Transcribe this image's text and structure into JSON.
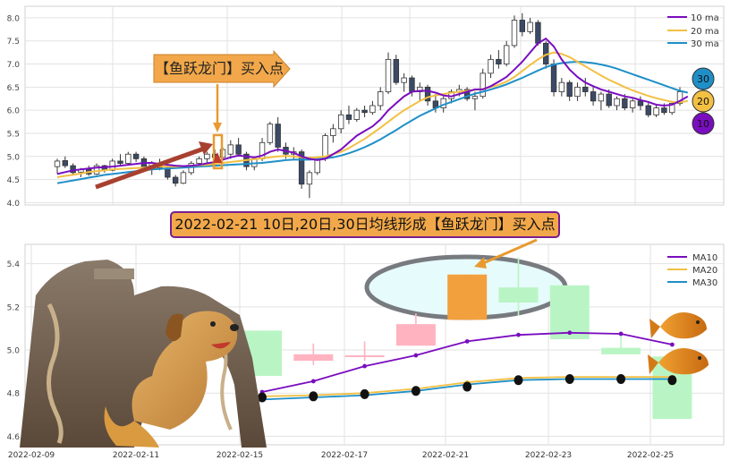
{
  "chart_data": [
    {
      "type": "candlestick",
      "title": "",
      "xlabel": "",
      "ylabel": "",
      "ylim": [
        3.95,
        8.25
      ],
      "yticks": [
        "4.0",
        "4.5",
        "5.0",
        "5.5",
        "6.0",
        "6.5",
        "7.0",
        "7.5",
        "8.0"
      ],
      "grid": true,
      "legend_position": "top-right",
      "legend": [
        "10 ma",
        "20 ma",
        "30 ma"
      ],
      "series_colors": {
        "10 ma": "#7a0dbf",
        "20 ma": "#f2c043",
        "30 ma": "#1f8fc8"
      },
      "candle_colors": {
        "up": "#ffffff",
        "down": "#3b4a66",
        "outline": "#333333"
      },
      "annotation": "【鱼跃龙门】买入点",
      "ma_badges": [
        "30",
        "20",
        "10"
      ],
      "candles": [
        {
          "o": 4.78,
          "h": 4.95,
          "l": 4.62,
          "c": 4.9
        },
        {
          "o": 4.91,
          "h": 5.0,
          "l": 4.75,
          "c": 4.8
        },
        {
          "o": 4.8,
          "h": 4.85,
          "l": 4.6,
          "c": 4.65
        },
        {
          "o": 4.66,
          "h": 4.75,
          "l": 4.55,
          "c": 4.72
        },
        {
          "o": 4.72,
          "h": 4.8,
          "l": 4.58,
          "c": 4.62
        },
        {
          "o": 4.62,
          "h": 4.85,
          "l": 4.6,
          "c": 4.8
        },
        {
          "o": 4.8,
          "h": 4.82,
          "l": 4.65,
          "c": 4.7
        },
        {
          "o": 4.7,
          "h": 4.95,
          "l": 4.68,
          "c": 4.9
        },
        {
          "o": 4.9,
          "h": 5.05,
          "l": 4.8,
          "c": 4.85
        },
        {
          "o": 4.85,
          "h": 5.1,
          "l": 4.82,
          "c": 5.05
        },
        {
          "o": 5.05,
          "h": 5.1,
          "l": 4.88,
          "c": 4.95
        },
        {
          "o": 4.95,
          "h": 5.0,
          "l": 4.7,
          "c": 4.75
        },
        {
          "o": 4.75,
          "h": 4.9,
          "l": 4.6,
          "c": 4.85
        },
        {
          "o": 4.85,
          "h": 4.95,
          "l": 4.7,
          "c": 4.75
        },
        {
          "o": 4.75,
          "h": 4.8,
          "l": 4.5,
          "c": 4.55
        },
        {
          "o": 4.55,
          "h": 4.6,
          "l": 4.35,
          "c": 4.42
        },
        {
          "o": 4.42,
          "h": 4.7,
          "l": 4.4,
          "c": 4.65
        },
        {
          "o": 4.65,
          "h": 4.9,
          "l": 4.6,
          "c": 4.85
        },
        {
          "o": 4.85,
          "h": 5.0,
          "l": 4.8,
          "c": 4.95
        },
        {
          "o": 4.95,
          "h": 5.1,
          "l": 4.85,
          "c": 5.05
        },
        {
          "o": 5.05,
          "h": 5.15,
          "l": 4.92,
          "c": 4.98
        },
        {
          "o": 4.98,
          "h": 5.2,
          "l": 4.95,
          "c": 5.15
        },
        {
          "o": 5.05,
          "h": 5.35,
          "l": 4.95,
          "c": 5.25
        },
        {
          "o": 5.25,
          "h": 5.4,
          "l": 5.0,
          "c": 5.05
        },
        {
          "o": 5.05,
          "h": 5.1,
          "l": 4.7,
          "c": 4.78
        },
        {
          "o": 4.78,
          "h": 5.0,
          "l": 4.7,
          "c": 4.95
        },
        {
          "o": 4.95,
          "h": 5.4,
          "l": 4.9,
          "c": 5.3
        },
        {
          "o": 5.3,
          "h": 5.75,
          "l": 5.25,
          "c": 5.7
        },
        {
          "o": 5.7,
          "h": 5.85,
          "l": 5.1,
          "c": 5.2
        },
        {
          "o": 5.2,
          "h": 5.3,
          "l": 4.95,
          "c": 5.05
        },
        {
          "o": 5.05,
          "h": 5.2,
          "l": 4.95,
          "c": 5.1
        },
        {
          "o": 5.1,
          "h": 5.15,
          "l": 4.3,
          "c": 4.4
        },
        {
          "o": 4.4,
          "h": 4.7,
          "l": 4.1,
          "c": 4.65
        },
        {
          "o": 4.65,
          "h": 5.0,
          "l": 4.6,
          "c": 4.95
        },
        {
          "o": 4.95,
          "h": 5.5,
          "l": 4.9,
          "c": 5.45
        },
        {
          "o": 5.45,
          "h": 5.7,
          "l": 5.3,
          "c": 5.6
        },
        {
          "o": 5.6,
          "h": 6.0,
          "l": 5.5,
          "c": 5.9
        },
        {
          "o": 5.9,
          "h": 6.1,
          "l": 5.7,
          "c": 5.8
        },
        {
          "o": 5.8,
          "h": 6.05,
          "l": 5.75,
          "c": 6.0
        },
        {
          "o": 6.0,
          "h": 6.1,
          "l": 5.85,
          "c": 5.95
        },
        {
          "o": 5.95,
          "h": 6.2,
          "l": 5.9,
          "c": 6.1
        },
        {
          "o": 6.1,
          "h": 6.5,
          "l": 6.0,
          "c": 6.4
        },
        {
          "o": 6.4,
          "h": 7.25,
          "l": 6.35,
          "c": 7.1
        },
        {
          "o": 7.1,
          "h": 7.2,
          "l": 6.55,
          "c": 6.6
        },
        {
          "o": 6.6,
          "h": 6.8,
          "l": 6.4,
          "c": 6.7
        },
        {
          "o": 6.7,
          "h": 6.75,
          "l": 6.3,
          "c": 6.4
        },
        {
          "o": 6.4,
          "h": 6.6,
          "l": 6.2,
          "c": 6.5
        },
        {
          "o": 6.5,
          "h": 6.55,
          "l": 6.1,
          "c": 6.2
        },
        {
          "o": 6.2,
          "h": 6.35,
          "l": 5.95,
          "c": 6.05
        },
        {
          "o": 6.05,
          "h": 6.3,
          "l": 5.95,
          "c": 6.25
        },
        {
          "o": 6.25,
          "h": 6.45,
          "l": 6.15,
          "c": 6.4
        },
        {
          "o": 6.4,
          "h": 6.55,
          "l": 6.3,
          "c": 6.45
        },
        {
          "o": 6.45,
          "h": 6.5,
          "l": 6.2,
          "c": 6.25
        },
        {
          "o": 6.25,
          "h": 6.4,
          "l": 6.0,
          "c": 6.3
        },
        {
          "o": 6.3,
          "h": 6.9,
          "l": 6.25,
          "c": 6.8
        },
        {
          "o": 6.8,
          "h": 7.2,
          "l": 6.7,
          "c": 7.1
        },
        {
          "o": 7.1,
          "h": 7.3,
          "l": 6.9,
          "c": 7.0
        },
        {
          "o": 7.0,
          "h": 7.5,
          "l": 6.95,
          "c": 7.4
        },
        {
          "o": 7.4,
          "h": 8.05,
          "l": 7.35,
          "c": 7.95
        },
        {
          "o": 7.95,
          "h": 8.1,
          "l": 7.6,
          "c": 7.7
        },
        {
          "o": 7.7,
          "h": 8.0,
          "l": 7.65,
          "c": 7.9
        },
        {
          "o": 7.9,
          "h": 7.95,
          "l": 7.4,
          "c": 7.45
        },
        {
          "o": 7.45,
          "h": 7.5,
          "l": 6.9,
          "c": 7.0
        },
        {
          "o": 7.0,
          "h": 7.1,
          "l": 6.3,
          "c": 6.4
        },
        {
          "o": 6.4,
          "h": 6.7,
          "l": 6.3,
          "c": 6.6
        },
        {
          "o": 6.6,
          "h": 6.65,
          "l": 6.2,
          "c": 6.3
        },
        {
          "o": 6.3,
          "h": 6.6,
          "l": 6.2,
          "c": 6.5
        },
        {
          "o": 6.5,
          "h": 6.7,
          "l": 6.3,
          "c": 6.4
        },
        {
          "o": 6.4,
          "h": 6.5,
          "l": 6.1,
          "c": 6.2
        },
        {
          "o": 6.2,
          "h": 6.4,
          "l": 6.0,
          "c": 6.35
        },
        {
          "o": 6.35,
          "h": 6.45,
          "l": 6.05,
          "c": 6.1
        },
        {
          "o": 6.1,
          "h": 6.3,
          "l": 6.0,
          "c": 6.25
        },
        {
          "o": 6.25,
          "h": 6.35,
          "l": 6.0,
          "c": 6.05
        },
        {
          "o": 6.05,
          "h": 6.25,
          "l": 5.95,
          "c": 6.2
        },
        {
          "o": 6.2,
          "h": 6.3,
          "l": 6.0,
          "c": 6.1
        },
        {
          "o": 6.1,
          "h": 6.2,
          "l": 5.85,
          "c": 5.9
        },
        {
          "o": 5.9,
          "h": 6.1,
          "l": 5.85,
          "c": 6.05
        },
        {
          "o": 6.05,
          "h": 6.15,
          "l": 5.9,
          "c": 5.95
        },
        {
          "o": 5.95,
          "h": 6.2,
          "l": 5.9,
          "c": 6.15
        },
        {
          "o": 6.15,
          "h": 6.5,
          "l": 6.1,
          "c": 6.4
        }
      ],
      "ma10": [
        4.62,
        4.66,
        4.7,
        4.72,
        4.74,
        4.76,
        4.77,
        4.78,
        4.8,
        4.82,
        4.84,
        4.86,
        4.86,
        4.84,
        4.82,
        4.8,
        4.79,
        4.8,
        4.82,
        4.85,
        4.88,
        4.93,
        4.98,
        5.02,
        5.0,
        4.98,
        5.02,
        5.1,
        5.15,
        5.12,
        5.08,
        5.0,
        4.95,
        4.92,
        4.95,
        5.05,
        5.15,
        5.3,
        5.45,
        5.55,
        5.65,
        5.8,
        6.0,
        6.15,
        6.3,
        6.4,
        6.42,
        6.42,
        6.38,
        6.32,
        6.3,
        6.35,
        6.4,
        6.45,
        6.45,
        6.52,
        6.62,
        6.72,
        6.88,
        7.05,
        7.25,
        7.45,
        7.55,
        7.38,
        7.1,
        6.88,
        6.72,
        6.6,
        6.52,
        6.45,
        6.4,
        6.35,
        6.3,
        6.27,
        6.22,
        6.18,
        6.12,
        6.1,
        6.12,
        6.2,
        6.3
      ],
      "ma20": [
        4.55,
        4.58,
        4.6,
        4.63,
        4.66,
        4.68,
        4.7,
        4.72,
        4.73,
        4.74,
        4.75,
        4.76,
        4.77,
        4.78,
        4.78,
        4.78,
        4.79,
        4.8,
        4.81,
        4.82,
        4.84,
        4.86,
        4.88,
        4.9,
        4.92,
        4.94,
        4.96,
        4.98,
        5.0,
        5.01,
        5.0,
        4.98,
        4.97,
        4.98,
        5.0,
        5.05,
        5.1,
        5.18,
        5.28,
        5.38,
        5.5,
        5.62,
        5.75,
        5.88,
        6.0,
        6.1,
        6.2,
        6.28,
        6.32,
        6.35,
        6.38,
        6.4,
        6.42,
        6.44,
        6.46,
        6.5,
        6.55,
        6.62,
        6.72,
        6.85,
        6.98,
        7.1,
        7.2,
        7.25,
        7.22,
        7.15,
        7.05,
        6.95,
        6.85,
        6.75,
        6.66,
        6.58,
        6.5,
        6.43,
        6.37,
        6.31,
        6.26,
        6.22,
        6.18,
        6.17,
        6.2
      ],
      "ma30": [
        4.42,
        4.45,
        4.48,
        4.51,
        4.54,
        4.57,
        4.6,
        4.62,
        4.64,
        4.66,
        4.68,
        4.7,
        4.72,
        4.73,
        4.74,
        4.75,
        4.76,
        4.77,
        4.78,
        4.79,
        4.8,
        4.81,
        4.82,
        4.83,
        4.84,
        4.85,
        4.86,
        4.88,
        4.9,
        4.92,
        4.93,
        4.93,
        4.93,
        4.94,
        4.96,
        4.98,
        5.02,
        5.07,
        5.13,
        5.2,
        5.28,
        5.37,
        5.47,
        5.57,
        5.68,
        5.78,
        5.88,
        5.96,
        6.04,
        6.12,
        6.18,
        6.24,
        6.3,
        6.36,
        6.4,
        6.45,
        6.5,
        6.56,
        6.63,
        6.7,
        6.78,
        6.86,
        6.93,
        6.99,
        7.02,
        7.04,
        7.05,
        7.04,
        7.02,
        6.99,
        6.95,
        6.9,
        6.84,
        6.78,
        6.72,
        6.66,
        6.6,
        6.54,
        6.48,
        6.42,
        6.38
      ]
    },
    {
      "type": "candlestick",
      "title": "",
      "xlabel": "",
      "ylabel": "",
      "ylim": [
        4.56,
        5.49
      ],
      "yticks": [
        "4.6",
        "4.8",
        "5.0",
        "5.2",
        "5.4"
      ],
      "grid": true,
      "legend_position": "top-right",
      "legend": [
        "MA10",
        "MA20",
        "MA30"
      ],
      "series_colors": {
        "MA10": "#7a0dbf",
        "MA20": "#f2c043",
        "MA30": "#1f8fc8"
      },
      "x_tick_labels": [
        "2022-02-09",
        "2022-02-11",
        "2022-02-15",
        "2022-02-17",
        "2022-02-21",
        "2022-02-23",
        "2022-02-25"
      ],
      "banner": "2022-02-21 10日,20日,30日均线形成【鱼跃龙门】买入点",
      "candles": [
        {
          "o": 4.88,
          "h": 5.09,
          "l": 4.88,
          "c": 5.09,
          "color": "#b9f5c4"
        },
        {
          "o": 4.98,
          "h": 5.03,
          "l": 4.93,
          "c": 4.95,
          "color": "#ffb3c1"
        },
        {
          "o": 4.975,
          "h": 5.04,
          "l": 4.95,
          "c": 4.97,
          "color": "#ffb3c1"
        },
        {
          "o": 5.02,
          "h": 5.17,
          "l": 5.02,
          "c": 5.12,
          "color": "#ffb3c1"
        },
        {
          "o": 5.14,
          "h": 5.35,
          "l": 5.14,
          "c": 5.35,
          "color": "#f2a03d"
        },
        {
          "o": 5.22,
          "h": 5.43,
          "l": 5.16,
          "c": 5.29,
          "color": "#b9f5c4"
        },
        {
          "o": 5.3,
          "h": 5.3,
          "l": 5.05,
          "c": 5.05,
          "color": "#b9f5c4"
        },
        {
          "o": 5.01,
          "h": 5.07,
          "l": 4.98,
          "c": 4.98,
          "color": "#b9f5c4"
        },
        {
          "o": 4.97,
          "h": 4.97,
          "l": 4.68,
          "c": 4.68,
          "color": "#b9f5c4"
        }
      ],
      "ma10": [
        4.805,
        4.855,
        4.925,
        4.975,
        5.04,
        5.07,
        5.08,
        5.075,
        5.025
      ],
      "ma20": [
        4.785,
        4.79,
        4.8,
        4.82,
        4.85,
        4.87,
        4.875,
        4.875,
        4.875
      ],
      "ma30": [
        4.77,
        4.78,
        4.79,
        4.81,
        4.84,
        4.86,
        4.865,
        4.865,
        4.865
      ],
      "black_dots": [
        4.78,
        4.785,
        4.795,
        4.81,
        4.83,
        4.86,
        4.865,
        4.865,
        4.86
      ]
    }
  ]
}
